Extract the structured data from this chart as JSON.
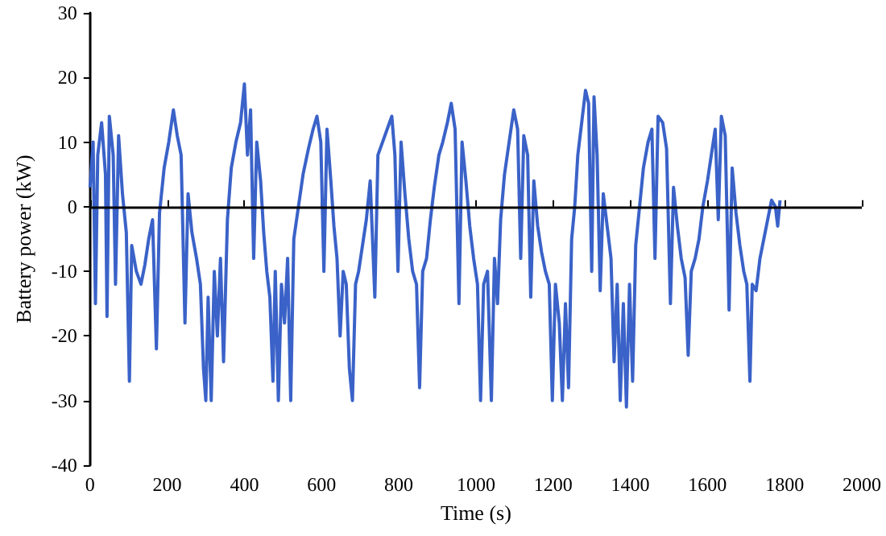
{
  "chart_data": {
    "type": "line",
    "xlabel": "Time (s)",
    "ylabel": "Battery power (kW)",
    "xlim": [
      0,
      2000
    ],
    "xticks": [
      0,
      200,
      400,
      600,
      800,
      1000,
      1200,
      1400,
      1600,
      1800,
      2000
    ],
    "ylim": [
      -40,
      30
    ],
    "yticks": [
      -40,
      -30,
      -20,
      -10,
      0,
      10,
      20,
      30
    ],
    "marker": "none",
    "line_style": "solid",
    "ref_lines": [
      {
        "axis": "y",
        "value": 0,
        "color": "#000000"
      }
    ],
    "series": [
      {
        "color": "#3a62c8",
        "x": [
          0,
          8,
          14,
          20,
          30,
          40,
          44,
          50,
          60,
          66,
          74,
          84,
          94,
          102,
          108,
          120,
          132,
          142,
          152,
          162,
          172,
          180,
          192,
          204,
          216,
          226,
          236,
          246,
          254,
          264,
          276,
          286,
          294,
          300,
          306,
          314,
          322,
          330,
          338,
          346,
          356,
          366,
          378,
          390,
          400,
          408,
          416,
          424,
          432,
          442,
          450,
          458,
          466,
          474,
          480,
          488,
          496,
          504,
          512,
          520,
          528,
          540,
          552,
          566,
          578,
          588,
          598,
          606,
          614,
          624,
          632,
          640,
          648,
          656,
          664,
          672,
          680,
          688,
          696,
          706,
          716,
          726,
          738,
          746,
          758,
          770,
          782,
          790,
          798,
          806,
          816,
          826,
          836,
          846,
          854,
          862,
          872,
          882,
          892,
          904,
          914,
          926,
          936,
          946,
          956,
          964,
          974,
          984,
          994,
          1004,
          1012,
          1020,
          1030,
          1040,
          1048,
          1056,
          1064,
          1074,
          1086,
          1098,
          1108,
          1116,
          1124,
          1134,
          1142,
          1150,
          1160,
          1170,
          1180,
          1190,
          1198,
          1206,
          1216,
          1224,
          1232,
          1240,
          1248,
          1256,
          1264,
          1274,
          1284,
          1292,
          1300,
          1306,
          1314,
          1322,
          1330,
          1340,
          1350,
          1358,
          1366,
          1374,
          1382,
          1390,
          1398,
          1406,
          1414,
          1424,
          1434,
          1446,
          1456,
          1464,
          1472,
          1484,
          1494,
          1504,
          1512,
          1522,
          1532,
          1542,
          1550,
          1558,
          1568,
          1578,
          1588,
          1600,
          1610,
          1620,
          1628,
          1636,
          1646,
          1656,
          1664,
          1674,
          1684,
          1694,
          1702,
          1710,
          1716,
          1726,
          1736,
          1746,
          1756,
          1766,
          1776,
          1782,
          1788
        ],
        "values": [
          3,
          10,
          -15,
          8,
          13,
          5,
          -17,
          14,
          8,
          -12,
          11,
          2,
          -4,
          -27,
          -6,
          -10,
          -12,
          -9,
          -5,
          -2,
          -22,
          -1,
          6,
          10,
          15,
          11,
          8,
          -18,
          2,
          -4,
          -8,
          -12,
          -25,
          -30,
          -14,
          -30,
          -10,
          -20,
          -8,
          -24,
          -2,
          6,
          10,
          13,
          19,
          8,
          15,
          -8,
          10,
          4,
          -4,
          -10,
          -14,
          -27,
          -10,
          -30,
          -12,
          -18,
          -8,
          -30,
          -5,
          0,
          5,
          9,
          12,
          14,
          10,
          -10,
          12,
          4,
          -3,
          -8,
          -20,
          -10,
          -12,
          -25,
          -30,
          -12,
          -10,
          -6,
          -2,
          4,
          -14,
          8,
          10,
          12,
          14,
          8,
          -10,
          10,
          2,
          -5,
          -10,
          -12,
          -28,
          -10,
          -8,
          -2,
          3,
          8,
          10,
          13,
          16,
          12,
          -15,
          10,
          4,
          -3,
          -8,
          -12,
          -30,
          -12,
          -10,
          -30,
          -8,
          -15,
          -2,
          5,
          10,
          15,
          12,
          -8,
          11,
          8,
          -14,
          4,
          -3,
          -7,
          -10,
          -12,
          -30,
          -12,
          -18,
          -30,
          -15,
          -28,
          -5,
          0,
          8,
          13,
          18,
          16,
          -10,
          17,
          8,
          -13,
          2,
          -3,
          -8,
          -24,
          -12,
          -30,
          -15,
          -31,
          -12,
          -27,
          -6,
          0,
          6,
          10,
          12,
          -8,
          14,
          13,
          9,
          -15,
          3,
          -3,
          -8,
          -11,
          -23,
          -10,
          -8,
          -5,
          0,
          4,
          8,
          12,
          -2,
          14,
          11,
          -16,
          6,
          -1,
          -6,
          -10,
          -12,
          -27,
          -12,
          -13,
          -8,
          -5,
          -2,
          1,
          0,
          -3,
          1
        ]
      }
    ]
  }
}
